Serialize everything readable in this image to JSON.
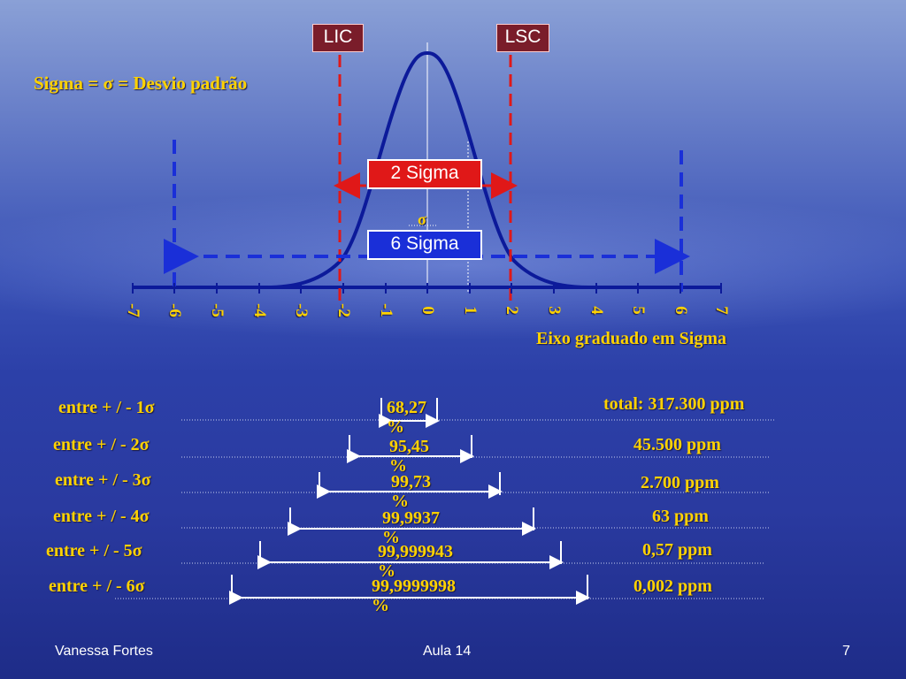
{
  "header": {
    "lic": "LIC",
    "lsc": "LSC",
    "sigma_def": "Sigma = σ = Desvio padrão"
  },
  "chart": {
    "two_sigma": "2 Sigma",
    "six_sigma": "6 Sigma",
    "sigma_symbol": "σ",
    "axis_title": "Eixo graduado em Sigma",
    "ticks": [
      "-7",
      "-6",
      "-5",
      "-4",
      "-3",
      "-2",
      "-1",
      "0",
      "1",
      "2",
      "3",
      "4",
      "5",
      "6",
      "7"
    ]
  },
  "table": {
    "total_label": "total:  317.300  ppm",
    "rows": [
      {
        "label": "entre + / - 1σ",
        "pct_a": "68,27",
        "pct_b": "%",
        "ppm": ""
      },
      {
        "label": "entre  + / - 2σ",
        "pct_a": "95,45",
        "pct_b": "%",
        "ppm": "45.500  ppm"
      },
      {
        "label": "entre  + / - 3σ",
        "pct_a": "99,73",
        "pct_b": "%",
        "ppm": "2.700  ppm"
      },
      {
        "label": "entre  + / - 4σ",
        "pct_a": "99,9937",
        "pct_b": "%",
        "ppm": "63  ppm"
      },
      {
        "label": "entre  + / - 5σ",
        "pct_a": "99,999943",
        "pct_b": "%",
        "ppm": "0,57  ppm"
      },
      {
        "label": "entre  + / - 6σ",
        "pct_a": "99,9999998",
        "pct_b": "%",
        "ppm": "0,002  ppm"
      }
    ]
  },
  "footer": {
    "author": "Vanessa Fortes",
    "lesson": "Aula 14",
    "page": "7"
  }
}
